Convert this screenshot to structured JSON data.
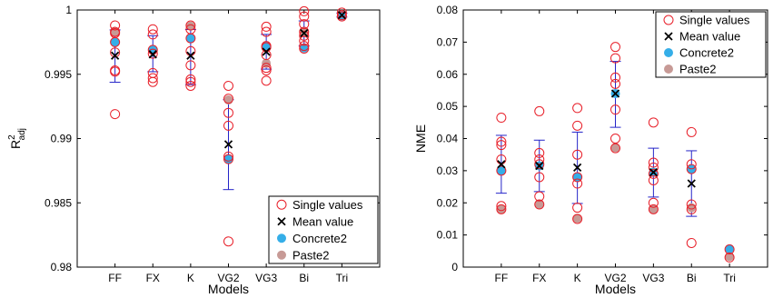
{
  "chart_data": [
    {
      "type": "scatter",
      "xlabel": "Models",
      "ylabel_main": "R",
      "ylabel_sup": "2",
      "ylabel_sub": "adj",
      "categories": [
        "FF",
        "FX",
        "K",
        "VG2",
        "VG3",
        "Bi",
        "Tri"
      ],
      "ylim": [
        0.98,
        1.0
      ],
      "yticks": [
        0.98,
        0.985,
        0.99,
        0.995,
        1.0
      ],
      "ytick_labels": [
        "0.98",
        "0.985",
        "0.99",
        "0.995",
        "1"
      ],
      "legend_position": "bottom-right",
      "legend": [
        "Single values",
        "Mean value",
        "Concrete2",
        "Paste2"
      ],
      "single_values": [
        [
          0.9988,
          0.9983,
          0.9982,
          0.9975,
          0.9967,
          0.9953,
          0.9952,
          0.9919
        ],
        [
          0.9985,
          0.9981,
          0.9969,
          0.9966,
          0.9951,
          0.9947,
          0.9944
        ],
        [
          0.9988,
          0.9985,
          0.9978,
          0.9968,
          0.9957,
          0.9946,
          0.9944,
          0.9941
        ],
        [
          0.9941,
          0.9931,
          0.992,
          0.991,
          0.9886,
          0.9884,
          0.982
        ],
        [
          0.9987,
          0.9983,
          0.9972,
          0.9971,
          0.9965,
          0.9955,
          0.9953,
          0.9945
        ],
        [
          0.9999,
          0.9995,
          0.9989,
          0.9983,
          0.998,
          0.9976,
          0.9972,
          0.997
        ],
        [
          0.9998,
          0.9996,
          0.9995
        ]
      ],
      "mean": [
        0.99645,
        0.99655,
        0.99645,
        0.98955,
        0.99675,
        0.9982,
        0.9996
      ],
      "error_low": [
        0.99438,
        0.9952,
        0.9942,
        0.98603,
        0.9954,
        0.9972,
        0.99945
      ],
      "error_high": [
        0.99845,
        0.998,
        0.99848,
        0.99302,
        0.9981,
        0.99915,
        0.99975
      ],
      "concrete2": [
        0.99748,
        0.9969,
        0.9978,
        0.9884,
        0.9972,
        0.99705,
        0.99955
      ],
      "paste2": [
        0.99832,
        0.9969,
        0.99875,
        0.993,
        0.99585,
        0.9983,
        0.99965
      ]
    },
    {
      "type": "scatter",
      "xlabel": "Models",
      "ylabel_main": "NME",
      "categories": [
        "FF",
        "FX",
        "K",
        "VG2",
        "VG3",
        "Bi",
        "Tri"
      ],
      "ylim": [
        0,
        0.08
      ],
      "yticks": [
        0,
        0.01,
        0.02,
        0.03,
        0.04,
        0.05,
        0.06,
        0.07,
        0.08
      ],
      "ytick_labels": [
        "0",
        "0.01",
        "0.02",
        "0.03",
        "0.04",
        "0.05",
        "0.06",
        "0.07",
        "0.08"
      ],
      "legend_position": "top-right",
      "legend": [
        "Single values",
        "Mean value",
        "Concrete2",
        "Paste2"
      ],
      "single_values": [
        [
          0.0465,
          0.039,
          0.038,
          0.0335,
          0.03,
          0.019,
          0.018
        ],
        [
          0.0485,
          0.0355,
          0.0335,
          0.032,
          0.028,
          0.022,
          0.0195
        ],
        [
          0.0495,
          0.044,
          0.035,
          0.028,
          0.026,
          0.0185,
          0.015
        ],
        [
          0.0685,
          0.065,
          0.059,
          0.057,
          0.049,
          0.04,
          0.037
        ],
        [
          0.045,
          0.0325,
          0.031,
          0.029,
          0.027,
          0.02,
          0.018
        ],
        [
          0.042,
          0.032,
          0.0305,
          0.0195,
          0.018,
          0.0075
        ],
        [
          0.0055,
          0.003
        ]
      ],
      "mean": [
        0.032,
        0.0315,
        0.031,
        0.054,
        0.0295,
        0.026,
        null
      ],
      "error_low": [
        0.023,
        0.0235,
        0.0198,
        0.0435,
        0.0218,
        0.0158,
        null
      ],
      "error_high": [
        0.041,
        0.0395,
        0.042,
        0.064,
        0.037,
        0.0362,
        null
      ],
      "concrete2": [
        0.03,
        0.0315,
        0.028,
        0.054,
        0.0295,
        0.0305,
        0.0057
      ],
      "paste2": [
        0.018,
        0.0195,
        0.0152,
        0.0372,
        0.018,
        0.0185,
        0.0033
      ]
    }
  ],
  "colors": {
    "single_values": "#e8202a",
    "mean": "#000000",
    "errorbar": "#2424c8",
    "concrete2": "#35aee8",
    "paste2": "#c79a96"
  }
}
